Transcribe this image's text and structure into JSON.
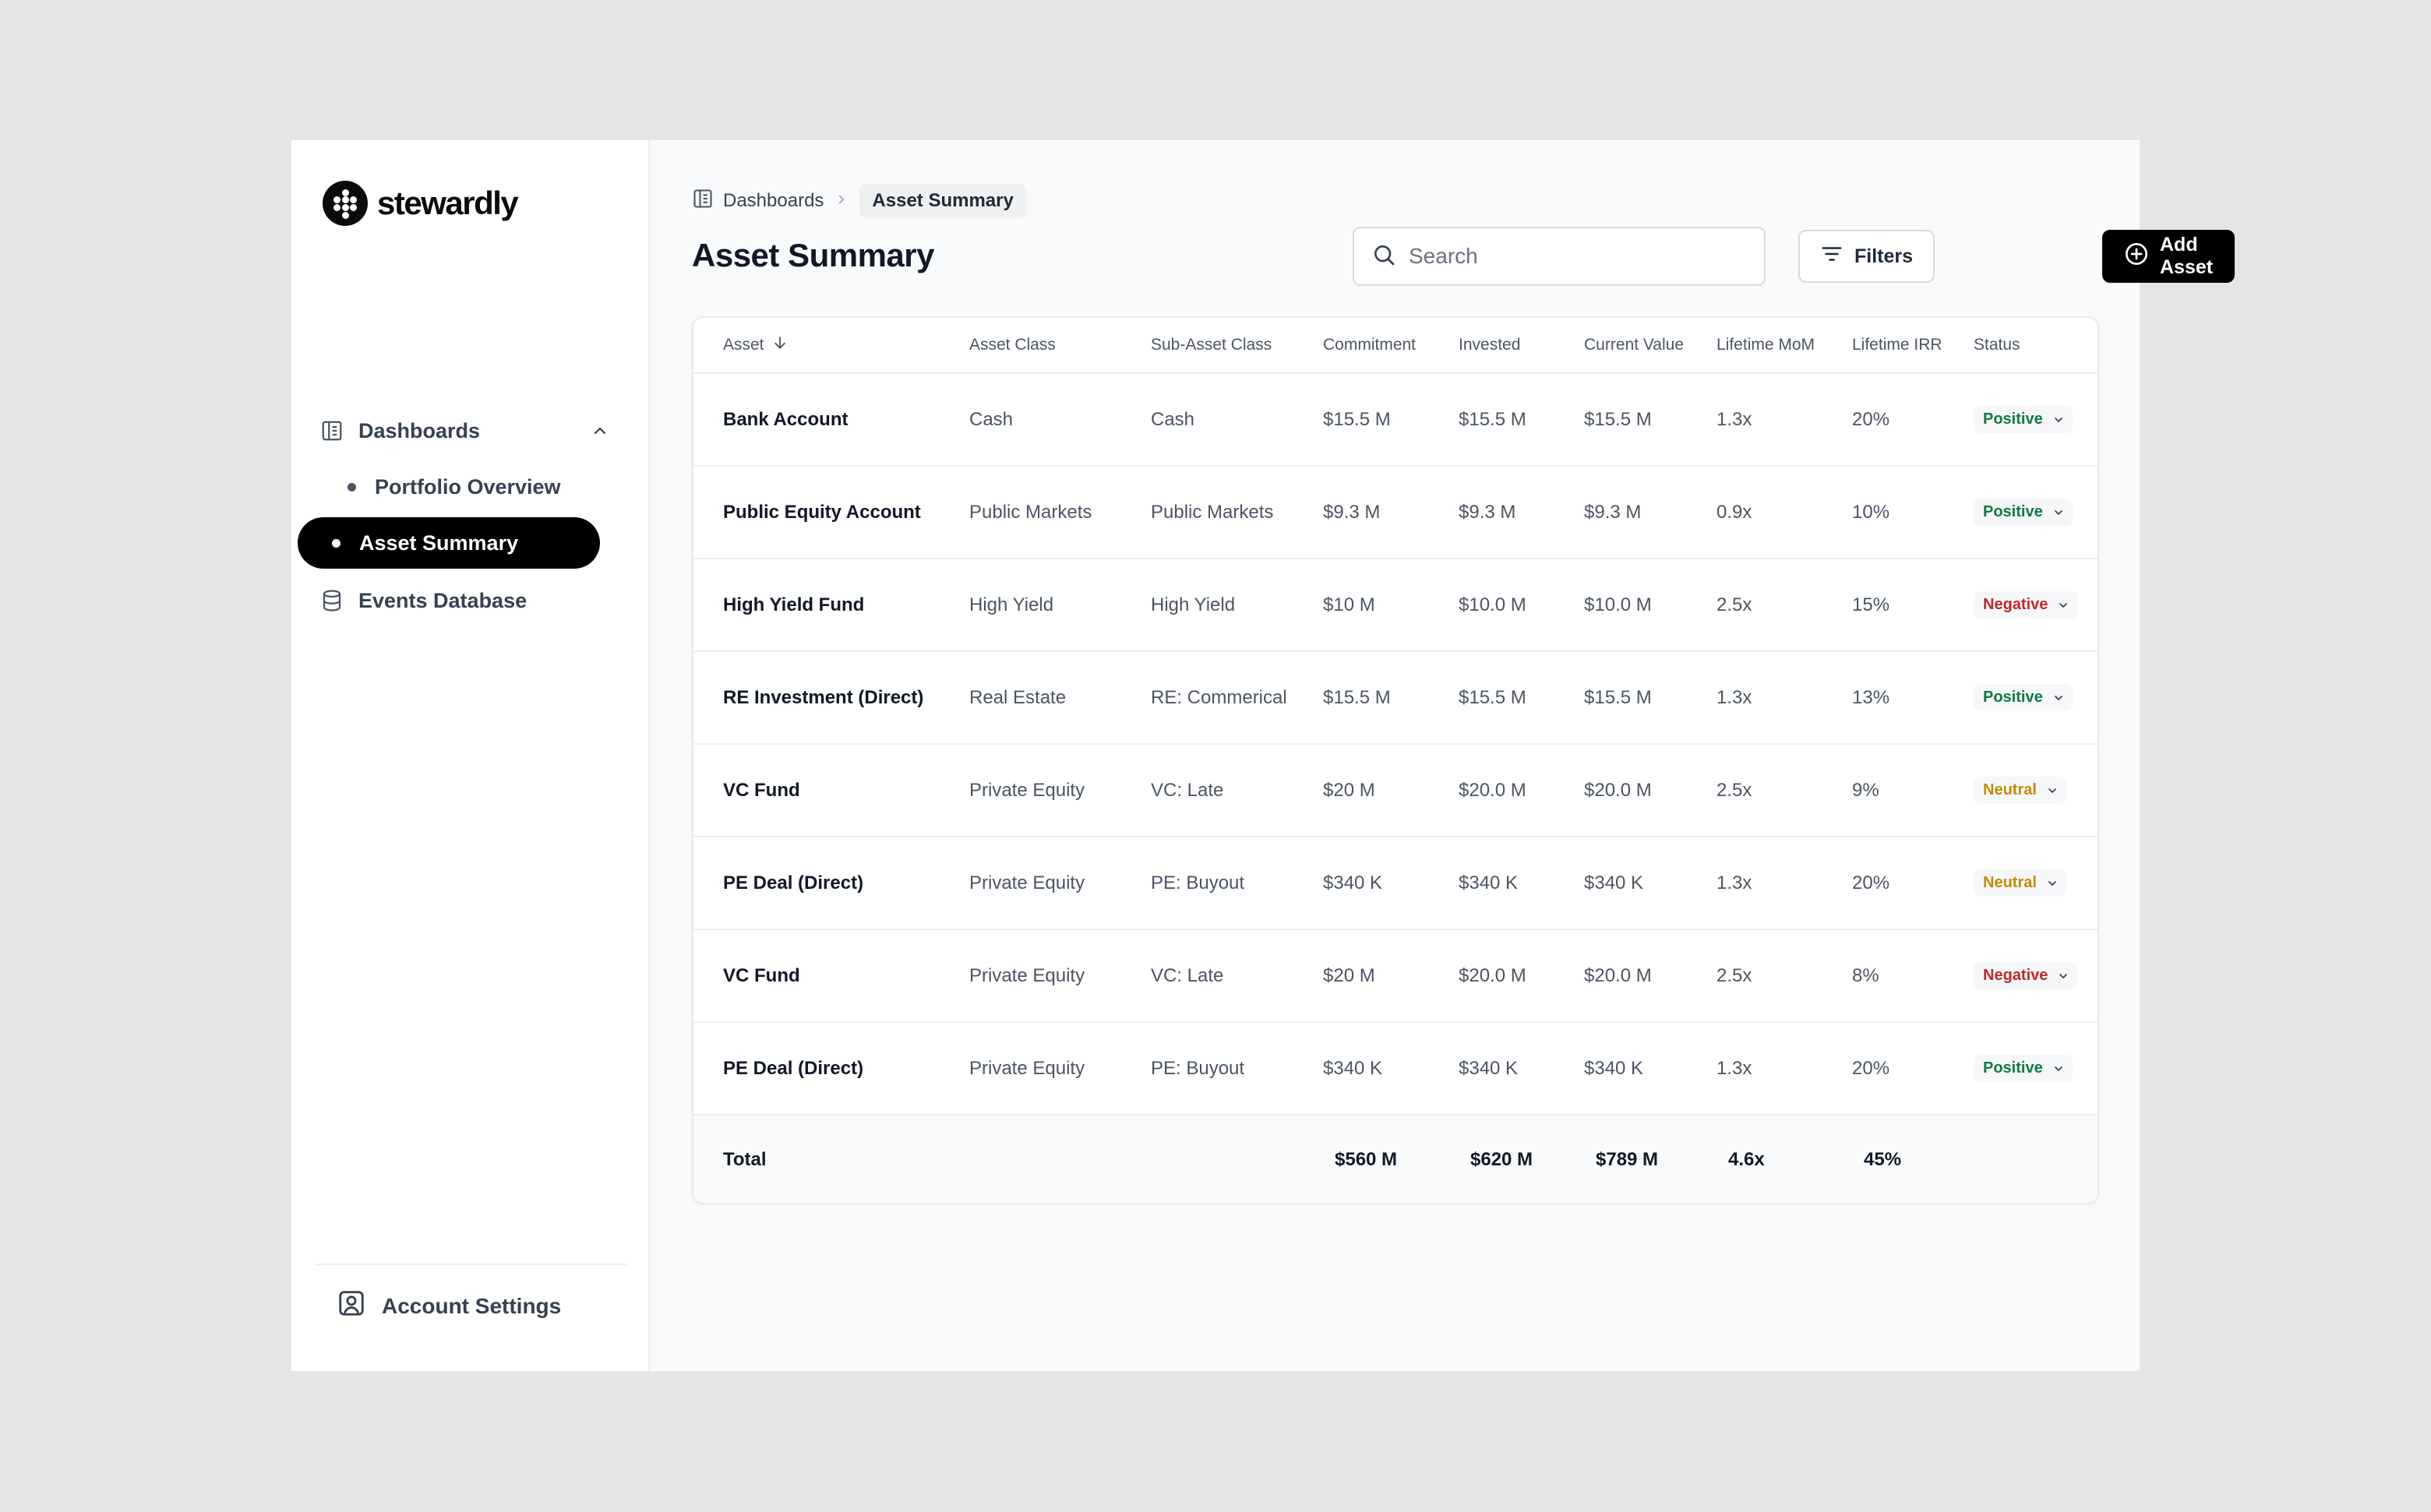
{
  "brand": {
    "name": "stewardly"
  },
  "sidebar": {
    "dashboards_label": "Dashboards",
    "items": [
      {
        "label": "Portfolio Overview"
      },
      {
        "label": "Asset Summary",
        "active": true
      }
    ],
    "events_label": "Events Database",
    "account_label": "Account Settings"
  },
  "breadcrumb": {
    "parent": "Dashboards",
    "current": "Asset Summary"
  },
  "page": {
    "title": "Asset Summary"
  },
  "search": {
    "placeholder": "Search",
    "value": ""
  },
  "toolbar": {
    "filters_label": "Filters",
    "add_label": "Add Asset"
  },
  "table": {
    "columns": [
      "Asset",
      "Asset Class",
      "Sub-Asset Class",
      "Commitment",
      "Invested",
      "Current Value",
      "Lifetime MoM",
      "Lifetime IRR",
      "Status"
    ],
    "rows": [
      [
        "Bank Account",
        "Cash",
        "Cash",
        "$15.5 M",
        "$15.5 M",
        "$15.5 M",
        "1.3x",
        "20%",
        "Positive"
      ],
      [
        "Public Equity Account",
        "Public Markets",
        "Public Markets",
        "$9.3 M",
        "$9.3 M",
        "$9.3 M",
        "0.9x",
        "10%",
        "Positive"
      ],
      [
        "High Yield Fund",
        "High Yield",
        "High Yield",
        "$10 M",
        "$10.0 M",
        "$10.0 M",
        "2.5x",
        "15%",
        "Negative"
      ],
      [
        "RE Investment (Direct)",
        "Real Estate",
        "RE: Commerical",
        "$15.5 M",
        "$15.5 M",
        "$15.5 M",
        "1.3x",
        "13%",
        "Positive"
      ],
      [
        "VC Fund",
        "Private Equity",
        "VC: Late",
        "$20 M",
        "$20.0 M",
        "$20.0 M",
        "2.5x",
        "9%",
        "Neutral"
      ],
      [
        "PE Deal (Direct)",
        "Private Equity",
        "PE: Buyout",
        "$340 K",
        "$340 K",
        "$340 K",
        "1.3x",
        "20%",
        "Neutral"
      ],
      [
        "VC Fund",
        "Private Equity",
        "VC: Late",
        "$20 M",
        "$20.0 M",
        "$20.0 M",
        "2.5x",
        "8%",
        "Negative"
      ],
      [
        "PE Deal (Direct)",
        "Private Equity",
        "PE: Buyout",
        "$340 K",
        "$340 K",
        "$340 K",
        "1.3x",
        "20%",
        "Positive"
      ]
    ],
    "total": {
      "label": "Total",
      "commitment": "$560 M",
      "invested": "$620 M",
      "current": "$789 M",
      "mom": "4.6x",
      "irr": "45%"
    }
  },
  "colors": {
    "positive": "#0f7a43",
    "negative": "#c1272d",
    "neutral": "#c68a0a",
    "accent": "#000000"
  }
}
